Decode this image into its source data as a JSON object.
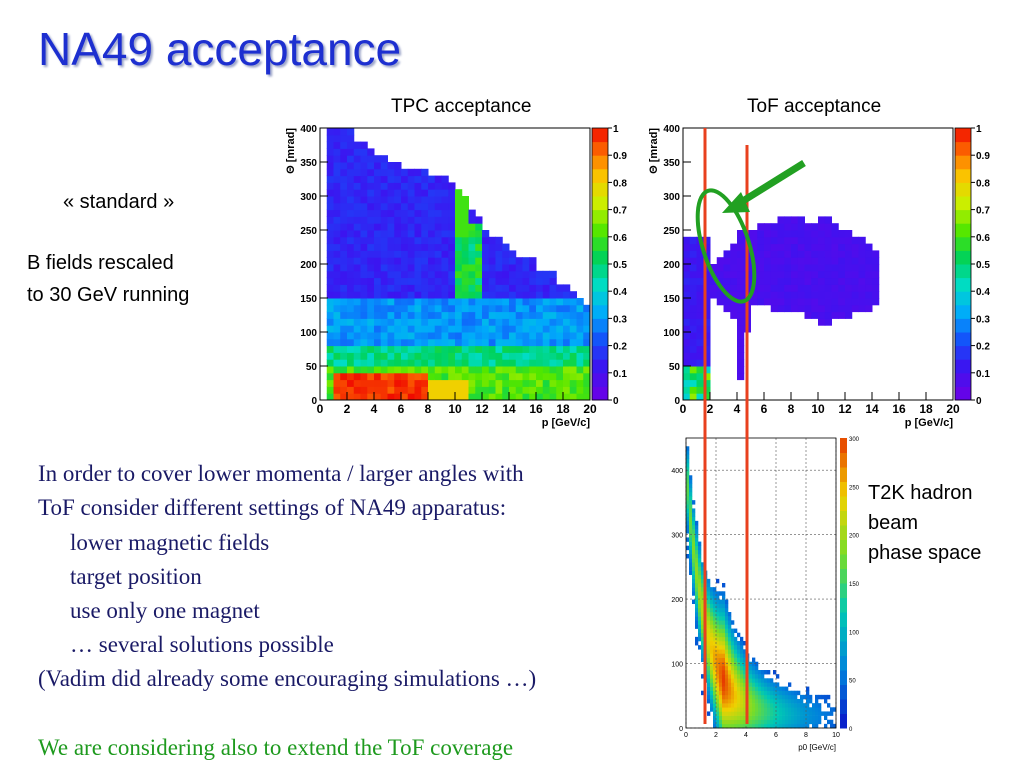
{
  "slide": {
    "title": "NA49 acceptance",
    "tpc_title": "TPC acceptance",
    "tof_title": "ToF acceptance",
    "standard_label": "« standard »",
    "bfield_line1": "B fields rescaled",
    "bfield_line2": "to 30 GeV running",
    "t2k_line1": "T2K hadron",
    "t2k_line2": "beam",
    "t2k_line3": "phase space",
    "body_lines": [
      "In order to cover lower momenta / larger angles with",
      "ToF consider different settings of NA49 apparatus:",
      "lower magnetic fields",
      "target position",
      "use only one magnet",
      "… several solutions possible",
      "(Vadim did already some encouraging simulations …)"
    ],
    "footer": "We are considering also to extend the ToF coverage",
    "colors": {
      "title": "#1d2fd0",
      "body_text": "#1a1a66",
      "footer_text": "#1e9a1e",
      "marker_lines": "#e8401e",
      "highlight": "#22a022"
    }
  },
  "chart_data": [
    {
      "type": "heatmap",
      "name": "TPC acceptance",
      "xlabel": "p [GeV/c]",
      "ylabel": "Θ [mrad]",
      "xlim": [
        0,
        20
      ],
      "ylim": [
        0,
        400
      ],
      "xticks": [
        0,
        2,
        4,
        6,
        8,
        10,
        12,
        14,
        16,
        18,
        20
      ],
      "yticks": [
        0,
        50,
        100,
        150,
        200,
        250,
        300,
        350,
        400
      ],
      "zlim": [
        0,
        1
      ],
      "zticks": [
        0,
        0.1,
        0.2,
        0.3,
        0.4,
        0.5,
        0.6,
        0.7,
        0.8,
        0.9,
        1
      ],
      "acceptance_edge": [
        [
          0,
          400
        ],
        [
          2,
          400
        ],
        [
          3.5,
          370
        ],
        [
          6,
          350
        ],
        [
          9,
          330
        ],
        [
          10,
          320
        ],
        [
          12,
          255
        ],
        [
          13,
          235
        ],
        [
          16,
          200
        ],
        [
          18,
          175
        ],
        [
          20,
          140
        ]
      ],
      "features": "high acceptance (~1) at theta < 40 mrad for p 1-8 GeV/c; ~0.4-0.5 band below 80 mrad; ~0.1-0.2 elsewhere"
    },
    {
      "type": "heatmap",
      "name": "ToF acceptance",
      "xlabel": "p [GeV/c]",
      "ylabel": "Θ [mrad]",
      "xlim": [
        0,
        20
      ],
      "ylim": [
        0,
        400
      ],
      "xticks": [
        0,
        2,
        4,
        6,
        8,
        10,
        12,
        14,
        16,
        18,
        20
      ],
      "yticks": [
        0,
        50,
        100,
        150,
        200,
        250,
        300,
        350,
        400
      ],
      "zlim": [
        0,
        1
      ],
      "zticks": [
        0,
        0.1,
        0.2,
        0.3,
        0.4,
        0.5,
        0.6,
        0.7,
        0.8,
        0.9,
        1
      ],
      "marker_lines_p": [
        1.1,
        4.5
      ],
      "features": "band of ~0.1 acceptance for p 4-14 GeV/c, theta 120-270 mrad; low-momentum strip p 0-2 GeV/c"
    },
    {
      "type": "scatter",
      "name": "T2K hadron beam phase space",
      "xlabel": "p0 [GeV/c]",
      "xlim": [
        0,
        10
      ],
      "ylim": [
        0,
        450
      ],
      "xticks": [
        0,
        2,
        4,
        6,
        8,
        10
      ],
      "yticks": [
        0,
        100,
        200,
        300,
        400
      ],
      "zticks": [
        0,
        50,
        100,
        150,
        200,
        250,
        300
      ],
      "features": "dense decaying band from theta~400 at p~0.5 to theta~30 at p~10, peak near p 2-3 GeV/c, theta 60-130"
    }
  ]
}
